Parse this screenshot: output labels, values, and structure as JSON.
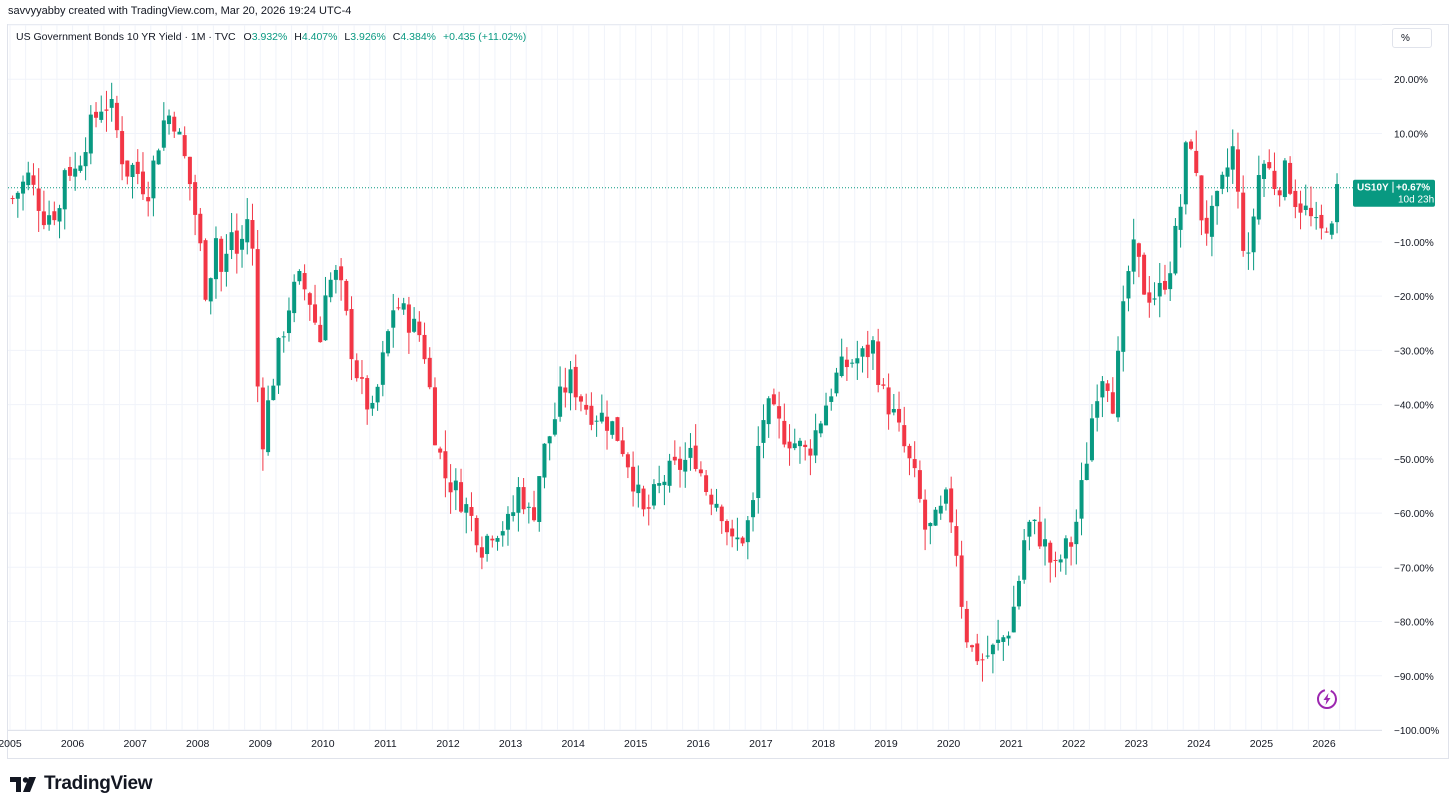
{
  "header": {
    "creator_line": "savvyyabby created with TradingView.com, Mar 20, 2026 19:24 UTC-4"
  },
  "legend": {
    "symbol_line": "US Government Bonds 10 YR Yield · 1M · TVC",
    "open_label": "O",
    "open_value": "3.932%",
    "high_label": "H",
    "high_value": "4.407%",
    "low_label": "L",
    "low_value": "3.926%",
    "close_label": "C",
    "close_value": "4.384%",
    "change": "+0.435 (+11.02%)"
  },
  "scale_button": {
    "label": "%"
  },
  "price_tag": {
    "symbol": "US10Y",
    "percent": "+0.67%",
    "countdown": "10d 23h",
    "color": "#089981"
  },
  "footer": {
    "brand": "TradingView"
  },
  "colors": {
    "up": "#089981",
    "down": "#f23645",
    "grid": "#f0f3fa",
    "axis_text": "#131722"
  },
  "icons": {
    "logo": "tradingview-logo-icon",
    "flash": "lightning-icon"
  },
  "chart_data": {
    "type": "candlestick",
    "title": "US Government Bonds 10 YR Yield",
    "interval": "1M",
    "y_scale": "percent",
    "ylim": [
      -100,
      30
    ],
    "y_ticks": [
      "20.00%",
      "10.00%",
      "−10.00%",
      "−20.00%",
      "−30.00%",
      "−40.00%",
      "−50.00%",
      "−60.00%",
      "−70.00%",
      "−80.00%",
      "−90.00%",
      "−100.00%"
    ],
    "y_tick_values": [
      20,
      10,
      -10,
      -20,
      -30,
      -40,
      -50,
      -60,
      -70,
      -80,
      -90,
      -100
    ],
    "x_ticks": [
      "2005",
      "2006",
      "2007",
      "2008",
      "2009",
      "2010",
      "2011",
      "2012",
      "2013",
      "2014",
      "2015",
      "2016",
      "2017",
      "2018",
      "2019",
      "2020",
      "2021",
      "2022",
      "2023",
      "2024",
      "2025",
      "2026"
    ],
    "x_tick_values": [
      2005,
      2006,
      2007,
      2008,
      2009,
      2010,
      2011,
      2012,
      2013,
      2014,
      2015,
      2016,
      2017,
      2018,
      2019,
      2020,
      2021,
      2022,
      2023,
      2024,
      2025,
      2026
    ],
    "base_line_value": 0,
    "grid": true,
    "close_path": [
      [
        2005.0,
        -2
      ],
      [
        2005.25,
        2
      ],
      [
        2005.5,
        -5
      ],
      [
        2005.75,
        -4
      ],
      [
        2005.83,
        4
      ],
      [
        2006.0,
        3
      ],
      [
        2006.2,
        10
      ],
      [
        2006.45,
        16
      ],
      [
        2006.6,
        14
      ],
      [
        2006.8,
        3
      ],
      [
        2006.95,
        4
      ],
      [
        2007.15,
        -1
      ],
      [
        2007.4,
        12
      ],
      [
        2007.55,
        14
      ],
      [
        2007.8,
        3
      ],
      [
        2007.95,
        -7
      ],
      [
        2008.1,
        -20
      ],
      [
        2008.25,
        -9
      ],
      [
        2008.35,
        -17
      ],
      [
        2008.5,
        -8
      ],
      [
        2008.6,
        -13
      ],
      [
        2008.8,
        -3
      ],
      [
        2008.9,
        -30
      ],
      [
        2008.95,
        -50
      ],
      [
        2009.05,
        -42
      ],
      [
        2009.25,
        -30
      ],
      [
        2009.45,
        -20
      ],
      [
        2009.6,
        -17
      ],
      [
        2009.8,
        -22
      ],
      [
        2009.9,
        -30
      ],
      [
        2010.0,
        -18
      ],
      [
        2010.2,
        -16
      ],
      [
        2010.3,
        -22
      ],
      [
        2010.45,
        -32
      ],
      [
        2010.6,
        -38
      ],
      [
        2010.75,
        -42
      ],
      [
        2010.9,
        -33
      ],
      [
        2011.1,
        -21
      ],
      [
        2011.3,
        -24
      ],
      [
        2011.5,
        -27
      ],
      [
        2011.6,
        -31
      ],
      [
        2011.75,
        -45
      ],
      [
        2011.9,
        -53
      ],
      [
        2012.1,
        -56
      ],
      [
        2012.3,
        -60
      ],
      [
        2012.5,
        -66
      ],
      [
        2012.65,
        -63
      ],
      [
        2012.95,
        -62
      ],
      [
        2013.1,
        -55
      ],
      [
        2013.3,
        -62
      ],
      [
        2013.45,
        -50
      ],
      [
        2013.6,
        -45
      ],
      [
        2013.75,
        -39
      ],
      [
        2013.9,
        -35
      ],
      [
        2014.0,
        -37
      ],
      [
        2014.2,
        -41
      ],
      [
        2014.4,
        -42
      ],
      [
        2014.6,
        -44
      ],
      [
        2014.8,
        -49
      ],
      [
        2014.95,
        -55
      ],
      [
        2015.1,
        -61
      ],
      [
        2015.25,
        -57
      ],
      [
        2015.45,
        -53
      ],
      [
        2015.7,
        -51
      ],
      [
        2015.9,
        -49
      ],
      [
        2016.1,
        -56
      ],
      [
        2016.3,
        -58
      ],
      [
        2016.5,
        -66
      ],
      [
        2016.7,
        -64
      ],
      [
        2016.85,
        -58
      ],
      [
        2016.95,
        -43
      ],
      [
        2017.1,
        -41
      ],
      [
        2017.3,
        -45
      ],
      [
        2017.5,
        -47
      ],
      [
        2017.7,
        -49
      ],
      [
        2017.9,
        -43
      ],
      [
        2018.05,
        -38
      ],
      [
        2018.2,
        -34
      ],
      [
        2018.4,
        -32
      ],
      [
        2018.6,
        -31
      ],
      [
        2018.75,
        -29
      ],
      [
        2018.9,
        -38
      ],
      [
        2019.05,
        -41
      ],
      [
        2019.25,
        -48
      ],
      [
        2019.45,
        -55
      ],
      [
        2019.6,
        -64
      ],
      [
        2019.8,
        -61
      ],
      [
        2019.95,
        -57
      ],
      [
        2020.1,
        -68
      ],
      [
        2020.2,
        -80
      ],
      [
        2020.3,
        -85
      ],
      [
        2020.5,
        -87
      ],
      [
        2020.7,
        -85
      ],
      [
        2020.9,
        -82
      ],
      [
        2021.05,
        -75
      ],
      [
        2021.2,
        -62
      ],
      [
        2021.35,
        -63
      ],
      [
        2021.5,
        -66
      ],
      [
        2021.65,
        -71
      ],
      [
        2021.8,
        -67
      ],
      [
        2021.95,
        -65
      ],
      [
        2022.05,
        -58
      ],
      [
        2022.15,
        -51
      ],
      [
        2022.3,
        -38
      ],
      [
        2022.45,
        -33
      ],
      [
        2022.6,
        -40
      ],
      [
        2022.7,
        -28
      ],
      [
        2022.85,
        -14
      ],
      [
        2022.95,
        -11
      ],
      [
        2023.05,
        -18
      ],
      [
        2023.2,
        -20
      ],
      [
        2023.35,
        -19
      ],
      [
        2023.5,
        -14
      ],
      [
        2023.65,
        -5
      ],
      [
        2023.8,
        12
      ],
      [
        2023.95,
        -2
      ],
      [
        2024.05,
        -8
      ],
      [
        2024.2,
        -5
      ],
      [
        2024.35,
        1
      ],
      [
        2024.5,
        7
      ],
      [
        2024.65,
        -9
      ],
      [
        2024.75,
        -14
      ],
      [
        2024.85,
        -3
      ],
      [
        2024.95,
        5
      ],
      [
        2025.05,
        4
      ],
      [
        2025.2,
        0
      ],
      [
        2025.35,
        3
      ],
      [
        2025.5,
        -2
      ],
      [
        2025.65,
        -4
      ],
      [
        2025.8,
        -7
      ],
      [
        2025.9,
        -9
      ],
      [
        2026.0,
        -6
      ],
      [
        2026.1,
        -9
      ],
      [
        2026.2,
        0.67
      ]
    ]
  }
}
